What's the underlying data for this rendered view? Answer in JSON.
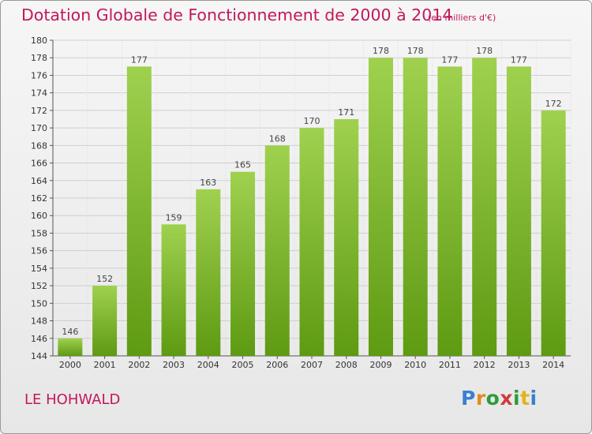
{
  "title": "Dotation Globale de Fonctionnement de 2000 à 2014",
  "subtitle": "(en milliers d'€)",
  "location": "LE HOHWALD",
  "logo": {
    "text": "Proxiti"
  },
  "colors": {
    "accent": "#c2185b",
    "bar_top": "#9fd14f",
    "bar_bottom": "#5e9a12",
    "grid": "#c8c8c8"
  },
  "chart_data": {
    "type": "bar",
    "title": "Dotation Globale de Fonctionnement de 2000 à 2014",
    "subtitle": "(en milliers d'€)",
    "xlabel": "",
    "ylabel": "",
    "categories": [
      "2000",
      "2001",
      "2002",
      "2003",
      "2004",
      "2005",
      "2006",
      "2007",
      "2008",
      "2009",
      "2010",
      "2011",
      "2012",
      "2013",
      "2014"
    ],
    "values": [
      146,
      152,
      177,
      159,
      163,
      165,
      168,
      170,
      171,
      178,
      178,
      177,
      178,
      177,
      172
    ],
    "ylim": [
      144,
      180
    ],
    "yticks": [
      144,
      146,
      148,
      150,
      152,
      154,
      156,
      158,
      160,
      162,
      164,
      166,
      168,
      170,
      172,
      174,
      176,
      178,
      180
    ],
    "grid": true,
    "data_labels": true
  }
}
